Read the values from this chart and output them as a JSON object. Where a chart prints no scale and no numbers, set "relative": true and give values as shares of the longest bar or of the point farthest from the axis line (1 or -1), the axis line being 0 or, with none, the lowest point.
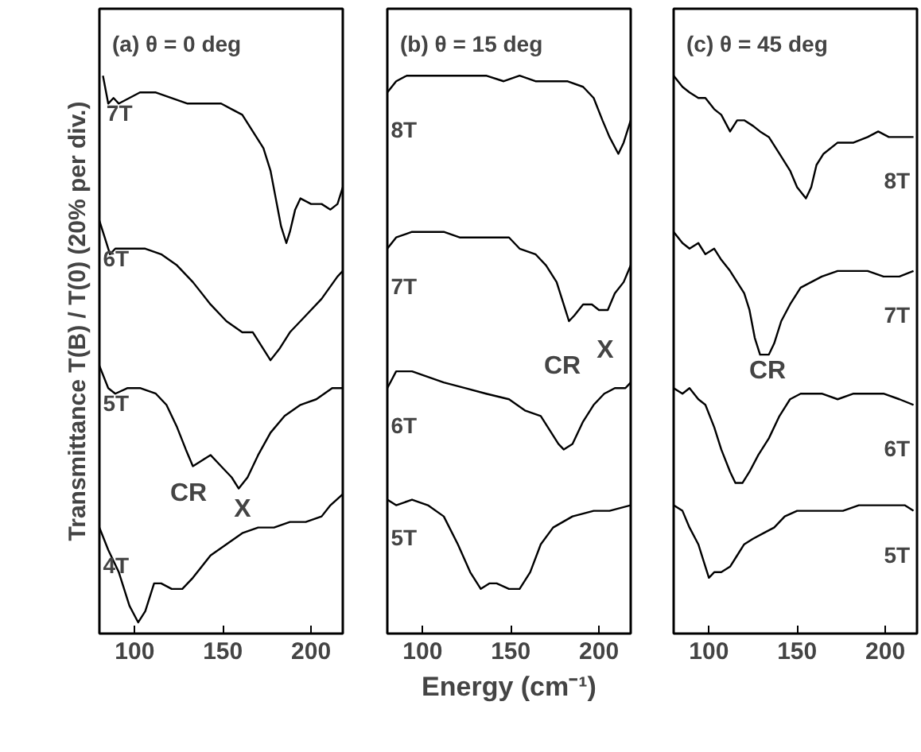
{
  "chart_data": [
    {
      "type": "line",
      "relative": true,
      "title": "(a)  θ = 0 deg",
      "ylabel": "Transmittance T(B) / T(0) (20% per div.)",
      "xlim": [
        80,
        218
      ],
      "xticks": [
        100,
        150,
        200
      ],
      "series": [
        {
          "name": "7T",
          "color": "#000000",
          "x": [
            82,
            85,
            88,
            91,
            97,
            103,
            112,
            121,
            130,
            139,
            149,
            155,
            161,
            167,
            173,
            177,
            180,
            183,
            186,
            188,
            191,
            194,
            200,
            206,
            211,
            215,
            218
          ],
          "values": [
            1.0,
            0.95,
            0.96,
            0.95,
            0.96,
            0.97,
            0.97,
            0.96,
            0.95,
            0.95,
            0.95,
            0.94,
            0.93,
            0.9,
            0.87,
            0.83,
            0.78,
            0.73,
            0.7,
            0.72,
            0.76,
            0.78,
            0.77,
            0.77,
            0.76,
            0.77,
            0.8
          ]
        },
        {
          "name": "6T",
          "color": "#000000",
          "x": [
            80,
            83,
            86,
            89,
            97,
            106,
            115,
            124,
            133,
            143,
            152,
            161,
            167,
            173,
            177,
            182,
            188,
            197,
            206,
            215,
            218
          ],
          "values": [
            0.74,
            0.71,
            0.68,
            0.69,
            0.69,
            0.69,
            0.68,
            0.66,
            0.63,
            0.59,
            0.56,
            0.54,
            0.54,
            0.51,
            0.49,
            0.51,
            0.54,
            0.57,
            0.6,
            0.64,
            0.65
          ]
        },
        {
          "name": "5T",
          "color": "#000000",
          "x": [
            80,
            85,
            89,
            96,
            103,
            112,
            118,
            124,
            129,
            133,
            138,
            143,
            149,
            155,
            159,
            164,
            170,
            177,
            185,
            194,
            203,
            212,
            218
          ],
          "values": [
            0.48,
            0.44,
            0.43,
            0.44,
            0.44,
            0.43,
            0.41,
            0.37,
            0.33,
            0.3,
            0.31,
            0.32,
            0.3,
            0.28,
            0.26,
            0.28,
            0.32,
            0.36,
            0.39,
            0.41,
            0.42,
            0.44,
            0.44
          ]
        },
        {
          "name": "4T",
          "color": "#000000",
          "x": [
            80,
            85,
            91,
            97,
            102,
            106,
            111,
            115,
            121,
            127,
            133,
            143,
            152,
            161,
            170,
            179,
            188,
            197,
            206,
            211,
            218
          ],
          "values": [
            0.19,
            0.15,
            0.11,
            0.05,
            0.02,
            0.04,
            0.09,
            0.09,
            0.08,
            0.08,
            0.1,
            0.14,
            0.16,
            0.18,
            0.19,
            0.19,
            0.2,
            0.2,
            0.21,
            0.23,
            0.25
          ]
        }
      ],
      "annotations": [
        "CR",
        "X"
      ]
    },
    {
      "type": "line",
      "relative": true,
      "title": "(b)  θ = 15 deg",
      "xlabel": "Energy (cm⁻¹)",
      "xlim": [
        80,
        218
      ],
      "xticks": [
        100,
        150,
        200
      ],
      "series": [
        {
          "name": "8T",
          "color": "#000000",
          "x": [
            80,
            85,
            91,
            100,
            109,
            118,
            127,
            136,
            146,
            155,
            164,
            173,
            182,
            191,
            197,
            202,
            206,
            211,
            214,
            218
          ],
          "values": [
            0.97,
            0.99,
            1.0,
            1.0,
            1.0,
            1.0,
            1.0,
            1.0,
            0.99,
            1.0,
            0.99,
            0.99,
            0.99,
            0.98,
            0.96,
            0.92,
            0.89,
            0.86,
            0.88,
            0.92
          ]
        },
        {
          "name": "7T",
          "color": "#000000",
          "x": [
            80,
            85,
            94,
            103,
            112,
            121,
            130,
            139,
            149,
            155,
            164,
            170,
            176,
            180,
            183,
            186,
            191,
            196,
            200,
            205,
            209,
            214,
            218
          ],
          "values": [
            0.69,
            0.71,
            0.72,
            0.72,
            0.72,
            0.71,
            0.71,
            0.71,
            0.71,
            0.69,
            0.68,
            0.66,
            0.63,
            0.59,
            0.56,
            0.57,
            0.59,
            0.59,
            0.58,
            0.58,
            0.61,
            0.63,
            0.66
          ]
        },
        {
          "name": "6T",
          "color": "#000000",
          "x": [
            80,
            85,
            94,
            103,
            112,
            124,
            136,
            149,
            158,
            167,
            173,
            177,
            180,
            185,
            191,
            197,
            203,
            209,
            215,
            218
          ],
          "values": [
            0.44,
            0.47,
            0.47,
            0.46,
            0.45,
            0.44,
            0.43,
            0.42,
            0.4,
            0.39,
            0.36,
            0.34,
            0.33,
            0.34,
            0.38,
            0.41,
            0.43,
            0.44,
            0.44,
            0.45
          ]
        },
        {
          "name": "5T",
          "color": "#000000",
          "x": [
            80,
            85,
            94,
            103,
            112,
            120,
            127,
            133,
            138,
            142,
            149,
            155,
            161,
            167,
            174,
            185,
            197,
            206,
            218
          ],
          "values": [
            0.24,
            0.23,
            0.24,
            0.23,
            0.21,
            0.16,
            0.11,
            0.08,
            0.09,
            0.09,
            0.08,
            0.08,
            0.11,
            0.16,
            0.19,
            0.21,
            0.22,
            0.22,
            0.23
          ]
        }
      ],
      "annotations": [
        "CR",
        "X"
      ]
    },
    {
      "type": "line",
      "relative": true,
      "title": "(c)  θ = 45 deg",
      "xlim": [
        80,
        218
      ],
      "xticks": [
        100,
        150,
        200
      ],
      "series": [
        {
          "name": "8T",
          "color": "#000000",
          "x": [
            80,
            85,
            89,
            94,
            98,
            103,
            107,
            112,
            116,
            120,
            125,
            129,
            134,
            140,
            146,
            150,
            155,
            158,
            161,
            165,
            173,
            182,
            190,
            196,
            202,
            208,
            216
          ],
          "values": [
            1.0,
            0.98,
            0.97,
            0.96,
            0.96,
            0.94,
            0.93,
            0.9,
            0.92,
            0.92,
            0.91,
            0.9,
            0.89,
            0.86,
            0.83,
            0.8,
            0.78,
            0.8,
            0.84,
            0.86,
            0.88,
            0.88,
            0.89,
            0.9,
            0.89,
            0.89,
            0.89
          ]
        },
        {
          "name": "7T",
          "color": "#000000",
          "x": [
            80,
            85,
            89,
            94,
            98,
            103,
            107,
            112,
            116,
            120,
            123,
            126,
            129,
            134,
            137,
            141,
            146,
            152,
            158,
            164,
            173,
            182,
            190,
            199,
            208,
            216
          ],
          "values": [
            0.72,
            0.7,
            0.69,
            0.7,
            0.68,
            0.69,
            0.67,
            0.65,
            0.63,
            0.61,
            0.58,
            0.53,
            0.5,
            0.5,
            0.52,
            0.56,
            0.59,
            0.62,
            0.63,
            0.64,
            0.65,
            0.65,
            0.65,
            0.64,
            0.64,
            0.65
          ]
        },
        {
          "name": "6T",
          "color": "#000000",
          "x": [
            80,
            85,
            89,
            94,
            98,
            103,
            107,
            112,
            115,
            119,
            123,
            128,
            134,
            140,
            146,
            152,
            158,
            164,
            173,
            182,
            190,
            199,
            208,
            216
          ],
          "values": [
            0.44,
            0.43,
            0.44,
            0.42,
            0.41,
            0.37,
            0.33,
            0.29,
            0.27,
            0.27,
            0.29,
            0.32,
            0.35,
            0.39,
            0.42,
            0.43,
            0.43,
            0.43,
            0.42,
            0.43,
            0.43,
            0.43,
            0.42,
            0.41
          ]
        },
        {
          "name": "5T",
          "color": "#000000",
          "x": [
            80,
            85,
            89,
            94,
            97,
            100,
            103,
            107,
            112,
            116,
            120,
            125,
            131,
            137,
            143,
            150,
            158,
            167,
            176,
            185,
            194,
            203,
            211,
            216
          ],
          "values": [
            0.23,
            0.22,
            0.19,
            0.16,
            0.13,
            0.1,
            0.11,
            0.11,
            0.12,
            0.14,
            0.16,
            0.17,
            0.18,
            0.19,
            0.21,
            0.22,
            0.22,
            0.22,
            0.22,
            0.23,
            0.23,
            0.23,
            0.23,
            0.22
          ]
        }
      ],
      "annotations": [
        "CR"
      ]
    }
  ]
}
